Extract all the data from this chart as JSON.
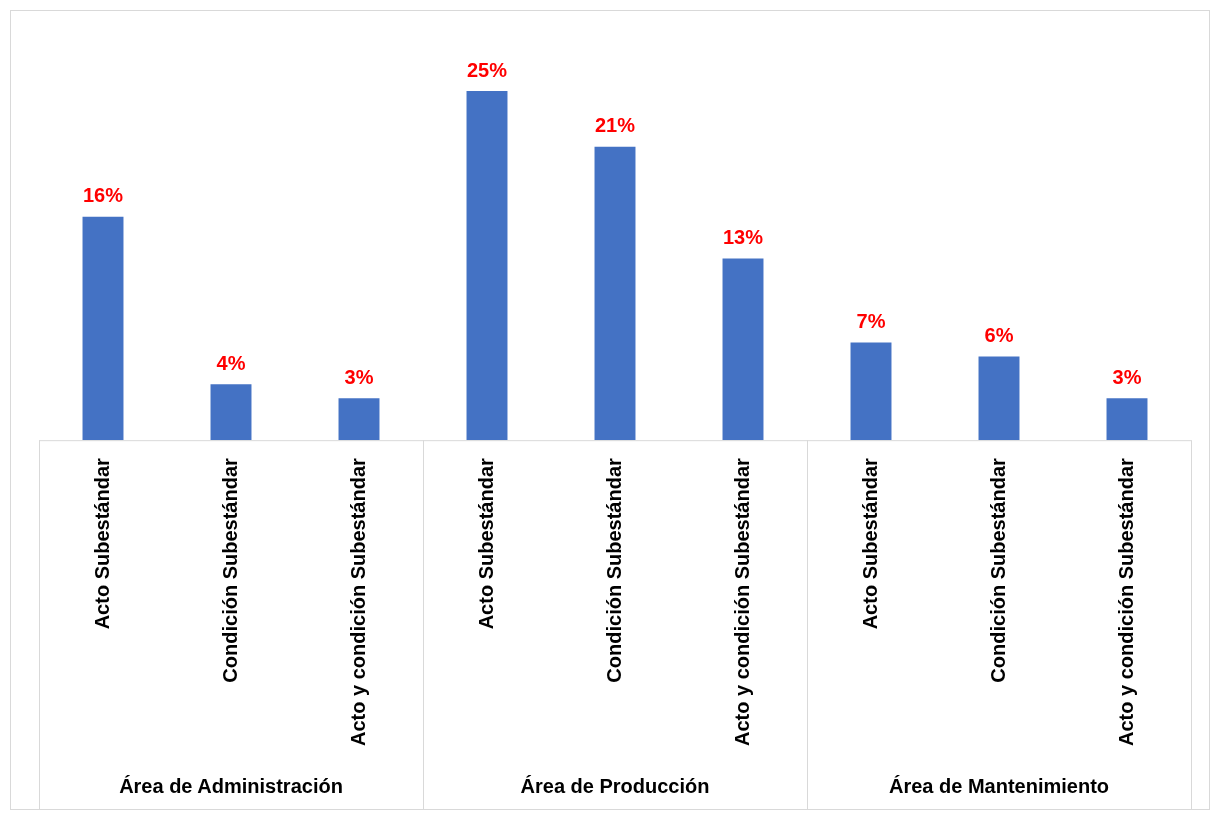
{
  "chart_data": {
    "type": "bar",
    "categories": [
      "Acto Subestándar",
      "Condición Subestándar",
      "Acto y condición Subestándar",
      "Acto Subestándar",
      "Condición Subestándar",
      "Acto y condición Subestándar",
      "Acto Subestándar",
      "Condición Subestándar",
      "Acto y condición Subestándar"
    ],
    "values": [
      16,
      4,
      3,
      25,
      21,
      13,
      7,
      6,
      3
    ],
    "value_labels": [
      "16%",
      "4%",
      "3%",
      "25%",
      "21%",
      "13%",
      "7%",
      "6%",
      "3%"
    ],
    "color": "#4472c4",
    "grid": false,
    "legend": false,
    "annotations": [
      "Área de Administración",
      "Área de Producción",
      "Área de Mantenimiento"
    ]
  }
}
